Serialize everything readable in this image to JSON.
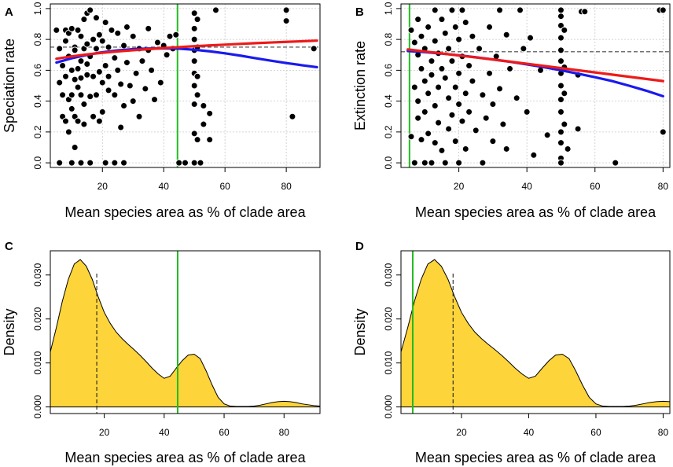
{
  "chart_data": [
    {
      "panel": "A",
      "type": "scatter",
      "xlabel": "Mean species area as % of clade area",
      "ylabel": "Speciation rate",
      "xlim": [
        3,
        91
      ],
      "ylim": [
        -0.03,
        1.03
      ],
      "xticks": [
        20,
        40,
        60,
        80
      ],
      "yticks": [
        0.0,
        0.2,
        0.4,
        0.6,
        0.8,
        1.0
      ],
      "ytick_labels": [
        "0.0",
        "0.2",
        "0.4",
        "0.6",
        "0.8",
        "1.0"
      ],
      "grid": true,
      "hline": 0.75,
      "vline": 44.5,
      "colors": {
        "points": "#000000",
        "vline": "#22bb22",
        "blue": "#1a1aee",
        "red": "#ee1a1a",
        "hline": "#444444"
      },
      "points": [
        [
          5,
          0.86
        ],
        [
          6,
          0.74
        ],
        [
          6,
          0.52
        ],
        [
          7,
          0.63
        ],
        [
          7,
          0.44
        ],
        [
          7,
          0.3
        ],
        [
          8,
          0.79
        ],
        [
          8,
          0.86
        ],
        [
          8,
          0.27
        ],
        [
          8,
          0.56
        ],
        [
          9,
          0.69
        ],
        [
          9,
          0.2
        ],
        [
          9,
          0.84
        ],
        [
          9,
          0.41
        ],
        [
          10,
          0.44
        ],
        [
          10,
          0.35
        ],
        [
          10,
          0.6
        ],
        [
          10,
          0.87
        ],
        [
          11,
          0.75
        ],
        [
          11,
          0.54
        ],
        [
          11,
          0.73
        ],
        [
          11,
          0.3
        ],
        [
          11,
          0.1
        ],
        [
          12,
          0.86
        ],
        [
          12,
          0.61
        ],
        [
          12,
          0.49
        ],
        [
          12,
          0.27
        ],
        [
          13,
          0.66
        ],
        [
          13,
          0.44
        ],
        [
          13,
          0.82
        ],
        [
          13,
          0.55
        ],
        [
          14,
          0.93
        ],
        [
          14,
          0.74
        ],
        [
          14,
          0.25
        ],
        [
          14,
          0.38
        ],
        [
          15,
          0.97
        ],
        [
          15,
          0.64
        ],
        [
          15,
          0.77
        ],
        [
          15,
          0.57
        ],
        [
          16,
          0.99
        ],
        [
          16,
          0.43
        ],
        [
          16,
          0.69
        ],
        [
          17,
          0.3
        ],
        [
          17,
          0.56
        ],
        [
          17,
          0.8
        ],
        [
          18,
          0.94
        ],
        [
          18,
          0.44
        ],
        [
          18,
          0.74
        ],
        [
          19,
          0.27
        ],
        [
          19,
          0.59
        ],
        [
          19,
          0.83
        ],
        [
          20,
          0.79
        ],
        [
          20,
          0.52
        ],
        [
          20,
          0.33
        ],
        [
          21,
          0.91
        ],
        [
          21,
          0.63
        ],
        [
          22,
          0.56
        ],
        [
          22,
          0.75
        ],
        [
          22,
          0.47
        ],
        [
          23,
          0.86
        ],
        [
          24,
          0.44
        ],
        [
          24,
          0.68
        ],
        [
          25,
          0.84
        ],
        [
          25,
          0.6
        ],
        [
          26,
          0.51
        ],
        [
          26,
          0.23
        ],
        [
          27,
          0.76
        ],
        [
          27,
          0.37
        ],
        [
          28,
          0.88
        ],
        [
          28,
          0.65
        ],
        [
          29,
          0.5
        ],
        [
          30,
          0.82
        ],
        [
          30,
          0.4
        ],
        [
          31,
          0.58
        ],
        [
          32,
          0.74
        ],
        [
          32,
          0.3
        ],
        [
          33,
          0.66
        ],
        [
          34,
          0.48
        ],
        [
          35,
          0.87
        ],
        [
          35,
          0.73
        ],
        [
          36,
          0.6
        ],
        [
          37,
          0.41
        ],
        [
          38,
          0.78
        ],
        [
          39,
          0.52
        ],
        [
          40,
          0.76
        ],
        [
          41,
          0.7
        ],
        [
          42,
          0.82
        ],
        [
          43,
          0.74
        ],
        [
          44,
          0.83
        ],
        [
          50,
          0.97
        ],
        [
          50,
          0.87
        ],
        [
          50,
          0.8
        ],
        [
          50,
          0.73
        ],
        [
          50,
          0.66
        ],
        [
          50,
          0.58
        ],
        [
          50,
          0.5
        ],
        [
          50,
          0.38
        ],
        [
          50,
          0.19
        ],
        [
          50,
          0.0
        ],
        [
          51,
          0.93
        ],
        [
          51,
          0.75
        ],
        [
          51,
          0.56
        ],
        [
          51,
          0.44
        ],
        [
          51,
          0.15
        ],
        [
          53,
          0.37
        ],
        [
          53,
          0.25
        ],
        [
          55,
          0.32
        ],
        [
          55,
          0.15
        ],
        [
          57,
          0.99
        ],
        [
          80,
          0.99
        ],
        [
          80,
          0.92
        ],
        [
          82,
          0.3
        ],
        [
          89,
          0.74
        ],
        [
          6,
          0.0
        ],
        [
          10,
          0.0
        ],
        [
          13,
          0.0
        ],
        [
          16,
          0.0
        ],
        [
          21,
          0.0
        ],
        [
          24,
          0.0
        ],
        [
          27,
          0.0
        ],
        [
          45,
          0.0
        ],
        [
          47,
          0.0
        ],
        [
          52,
          0.0
        ]
      ],
      "series": [
        {
          "name": "blue fit",
          "x": [
            5,
            10,
            15,
            20,
            25,
            30,
            35,
            40,
            45,
            50,
            55,
            60,
            65,
            70,
            75,
            80,
            85,
            90
          ],
          "y": [
            0.65,
            0.678,
            0.7,
            0.717,
            0.729,
            0.737,
            0.741,
            0.742,
            0.74,
            0.733,
            0.723,
            0.71,
            0.695,
            0.678,
            0.662,
            0.647,
            0.633,
            0.62
          ]
        },
        {
          "name": "red fit",
          "x": [
            5,
            10,
            15,
            20,
            25,
            30,
            35,
            40,
            45,
            50,
            55,
            60,
            65,
            70,
            75,
            80,
            85,
            90
          ],
          "y": [
            0.675,
            0.69,
            0.703,
            0.713,
            0.722,
            0.73,
            0.737,
            0.744,
            0.75,
            0.756,
            0.761,
            0.766,
            0.771,
            0.776,
            0.78,
            0.784,
            0.788,
            0.792
          ]
        }
      ]
    },
    {
      "panel": "B",
      "type": "scatter",
      "xlabel": "Mean species area as % of clade area",
      "ylabel": "Extinction rate",
      "xlim": [
        3,
        82
      ],
      "ylim": [
        -0.03,
        1.03
      ],
      "xticks": [
        20,
        40,
        60,
        80
      ],
      "yticks": [
        0.0,
        0.2,
        0.4,
        0.6,
        0.8,
        1.0
      ],
      "ytick_labels": [
        "0.0",
        "0.2",
        "0.4",
        "0.6",
        "0.8",
        "1.0"
      ],
      "grid": true,
      "hline": 0.72,
      "vline": 5.5,
      "colors": {
        "points": "#000000",
        "vline": "#22bb22",
        "blue": "#1a1aee",
        "red": "#ee1a1a",
        "hline": "#444444"
      },
      "points": [
        [
          6,
          0.86
        ],
        [
          6,
          0.17
        ],
        [
          7,
          0.78
        ],
        [
          7,
          0.49
        ],
        [
          7,
          0.0
        ],
        [
          8,
          0.93
        ],
        [
          8,
          0.7
        ],
        [
          8,
          0.4
        ],
        [
          8,
          0.29
        ],
        [
          9,
          0.82
        ],
        [
          9,
          0.61
        ],
        [
          9,
          0.15
        ],
        [
          10,
          0.74
        ],
        [
          10,
          0.53
        ],
        [
          10,
          0.33
        ],
        [
          10,
          0.0
        ],
        [
          11,
          0.88
        ],
        [
          11,
          0.45
        ],
        [
          11,
          0.19
        ],
        [
          12,
          0.66
        ],
        [
          12,
          0.57
        ],
        [
          12,
          0.0
        ],
        [
          13,
          0.99
        ],
        [
          13,
          0.79
        ],
        [
          13,
          0.37
        ],
        [
          13,
          0.13
        ],
        [
          14,
          0.71
        ],
        [
          14,
          0.49
        ],
        [
          14,
          0.26
        ],
        [
          15,
          0.93
        ],
        [
          15,
          0.61
        ],
        [
          15,
          0.08
        ],
        [
          16,
          0.84
        ],
        [
          16,
          0.55
        ],
        [
          16,
          0.0
        ],
        [
          17,
          0.74
        ],
        [
          17,
          0.42
        ],
        [
          17,
          0.22
        ],
        [
          18,
          0.99
        ],
        [
          18,
          0.66
        ],
        [
          18,
          0.31
        ],
        [
          19,
          0.88
        ],
        [
          19,
          0.49
        ],
        [
          19,
          0.14
        ],
        [
          20,
          0.8
        ],
        [
          20,
          0.58
        ],
        [
          20,
          0.38
        ],
        [
          20,
          0.0
        ],
        [
          21,
          0.99
        ],
        [
          21,
          0.69
        ],
        [
          21,
          0.27
        ],
        [
          22,
          0.91
        ],
        [
          22,
          0.45
        ],
        [
          22,
          0.09
        ],
        [
          23,
          0.63
        ],
        [
          23,
          0.33
        ],
        [
          24,
          0.82
        ],
        [
          24,
          0.53
        ],
        [
          25,
          0.21
        ],
        [
          26,
          0.74
        ],
        [
          27,
          0.44
        ],
        [
          27,
          0.0
        ],
        [
          28,
          0.29
        ],
        [
          29,
          0.88
        ],
        [
          29,
          0.58
        ],
        [
          30,
          0.38
        ],
        [
          30,
          0.14
        ],
        [
          31,
          0.69
        ],
        [
          32,
          0.99
        ],
        [
          32,
          0.48
        ],
        [
          33,
          0.25
        ],
        [
          34,
          0.83
        ],
        [
          34,
          0.09
        ],
        [
          35,
          0.61
        ],
        [
          37,
          0.42
        ],
        [
          38,
          0.99
        ],
        [
          39,
          0.74
        ],
        [
          40,
          0.33
        ],
        [
          41,
          0.81
        ],
        [
          42,
          0.05
        ],
        [
          44,
          0.6
        ],
        [
          46,
          0.18
        ],
        [
          50,
          0.99
        ],
        [
          50,
          0.95
        ],
        [
          50,
          0.89
        ],
        [
          50,
          0.81
        ],
        [
          50,
          0.73
        ],
        [
          50,
          0.66
        ],
        [
          50,
          0.58
        ],
        [
          50,
          0.5
        ],
        [
          50,
          0.41
        ],
        [
          50,
          0.33
        ],
        [
          50,
          0.2
        ],
        [
          50,
          0.13
        ],
        [
          50,
          0.03
        ],
        [
          50,
          0.0
        ],
        [
          51,
          0.86
        ],
        [
          51,
          0.62
        ],
        [
          51,
          0.45
        ],
        [
          51,
          0.25
        ],
        [
          52,
          0.09
        ],
        [
          55,
          0.57
        ],
        [
          56,
          0.98
        ],
        [
          57,
          0.98
        ],
        [
          55,
          0.22
        ],
        [
          66,
          0.0
        ],
        [
          79,
          0.99
        ],
        [
          80,
          0.99
        ],
        [
          80,
          0.2
        ]
      ],
      "series": [
        {
          "name": "blue fit",
          "x": [
            5,
            10,
            15,
            20,
            25,
            30,
            35,
            40,
            45,
            50,
            55,
            60,
            65,
            70,
            75,
            80
          ],
          "y": [
            0.725,
            0.718,
            0.708,
            0.697,
            0.684,
            0.67,
            0.655,
            0.638,
            0.62,
            0.6,
            0.578,
            0.555,
            0.53,
            0.5,
            0.468,
            0.432
          ]
        },
        {
          "name": "red fit",
          "x": [
            5,
            10,
            15,
            20,
            25,
            30,
            35,
            40,
            45,
            50,
            55,
            60,
            65,
            70,
            75,
            80
          ],
          "y": [
            0.735,
            0.722,
            0.709,
            0.696,
            0.683,
            0.67,
            0.656,
            0.642,
            0.628,
            0.614,
            0.6,
            0.586,
            0.572,
            0.558,
            0.544,
            0.53
          ]
        }
      ]
    },
    {
      "panel": "C",
      "type": "area",
      "xlabel": "Mean species area as % of clade area",
      "ylabel": "Density",
      "xlim": [
        2,
        92
      ],
      "ylim": [
        -0.0015,
        0.0355
      ],
      "xticks": [
        20,
        40,
        60,
        80
      ],
      "yticks": [
        0.0,
        0.01,
        0.02,
        0.03
      ],
      "ytick_labels": [
        "0.000",
        "0.010",
        "0.020",
        "0.030"
      ],
      "grid": false,
      "vline_dashed": 17.5,
      "vline_green": 44.5,
      "colors": {
        "fill": "#fdd43a",
        "outline": "#000000",
        "vline": "#22bb22"
      },
      "x": [
        2,
        4,
        6,
        8,
        10,
        12,
        14,
        16,
        18,
        20,
        22,
        24,
        26,
        28,
        30,
        32,
        34,
        36,
        38,
        40,
        42,
        44,
        46,
        48,
        50,
        52,
        54,
        56,
        58,
        60,
        62,
        64,
        66,
        68,
        70,
        72,
        74,
        76,
        78,
        80,
        82,
        84,
        86,
        88,
        90,
        92
      ],
      "y": [
        0.0125,
        0.018,
        0.024,
        0.029,
        0.0325,
        0.0335,
        0.032,
        0.029,
        0.025,
        0.0215,
        0.019,
        0.017,
        0.0155,
        0.0142,
        0.013,
        0.0117,
        0.0103,
        0.0088,
        0.0075,
        0.0065,
        0.007,
        0.0088,
        0.0105,
        0.0118,
        0.012,
        0.011,
        0.0082,
        0.005,
        0.0022,
        0.0007,
        0.0002,
        0.0001,
        0.0001,
        0.0001,
        0.0002,
        0.0004,
        0.0007,
        0.001,
        0.0012,
        0.0013,
        0.0012,
        0.001,
        0.0007,
        0.0005,
        0.0003,
        0.0002
      ]
    },
    {
      "panel": "D",
      "type": "area",
      "xlabel": "Mean species area as % of clade area",
      "ylabel": "Density",
      "xlim": [
        2,
        82
      ],
      "ylim": [
        -0.0015,
        0.0355
      ],
      "xticks": [
        20,
        40,
        60,
        80
      ],
      "yticks": [
        0.0,
        0.01,
        0.02,
        0.03
      ],
      "ytick_labels": [
        "0.000",
        "0.010",
        "0.020",
        "0.030"
      ],
      "grid": false,
      "vline_dashed": 17.5,
      "vline_green": 5.5,
      "colors": {
        "fill": "#fdd43a",
        "outline": "#000000",
        "vline": "#22bb22"
      },
      "x": [
        2,
        4,
        6,
        8,
        10,
        12,
        14,
        16,
        18,
        20,
        22,
        24,
        26,
        28,
        30,
        32,
        34,
        36,
        38,
        40,
        42,
        44,
        46,
        48,
        50,
        52,
        54,
        56,
        58,
        60,
        62,
        64,
        66,
        68,
        70,
        72,
        74,
        76,
        78,
        80,
        82
      ],
      "y": [
        0.0125,
        0.018,
        0.024,
        0.029,
        0.0325,
        0.0335,
        0.032,
        0.029,
        0.025,
        0.0215,
        0.019,
        0.017,
        0.0155,
        0.0142,
        0.013,
        0.0117,
        0.0103,
        0.0088,
        0.0075,
        0.0065,
        0.007,
        0.0088,
        0.0105,
        0.0118,
        0.012,
        0.011,
        0.0082,
        0.005,
        0.0022,
        0.0007,
        0.0002,
        0.0001,
        0.0001,
        0.0001,
        0.0002,
        0.0004,
        0.0007,
        0.001,
        0.0012,
        0.0013,
        0.0012
      ]
    }
  ]
}
